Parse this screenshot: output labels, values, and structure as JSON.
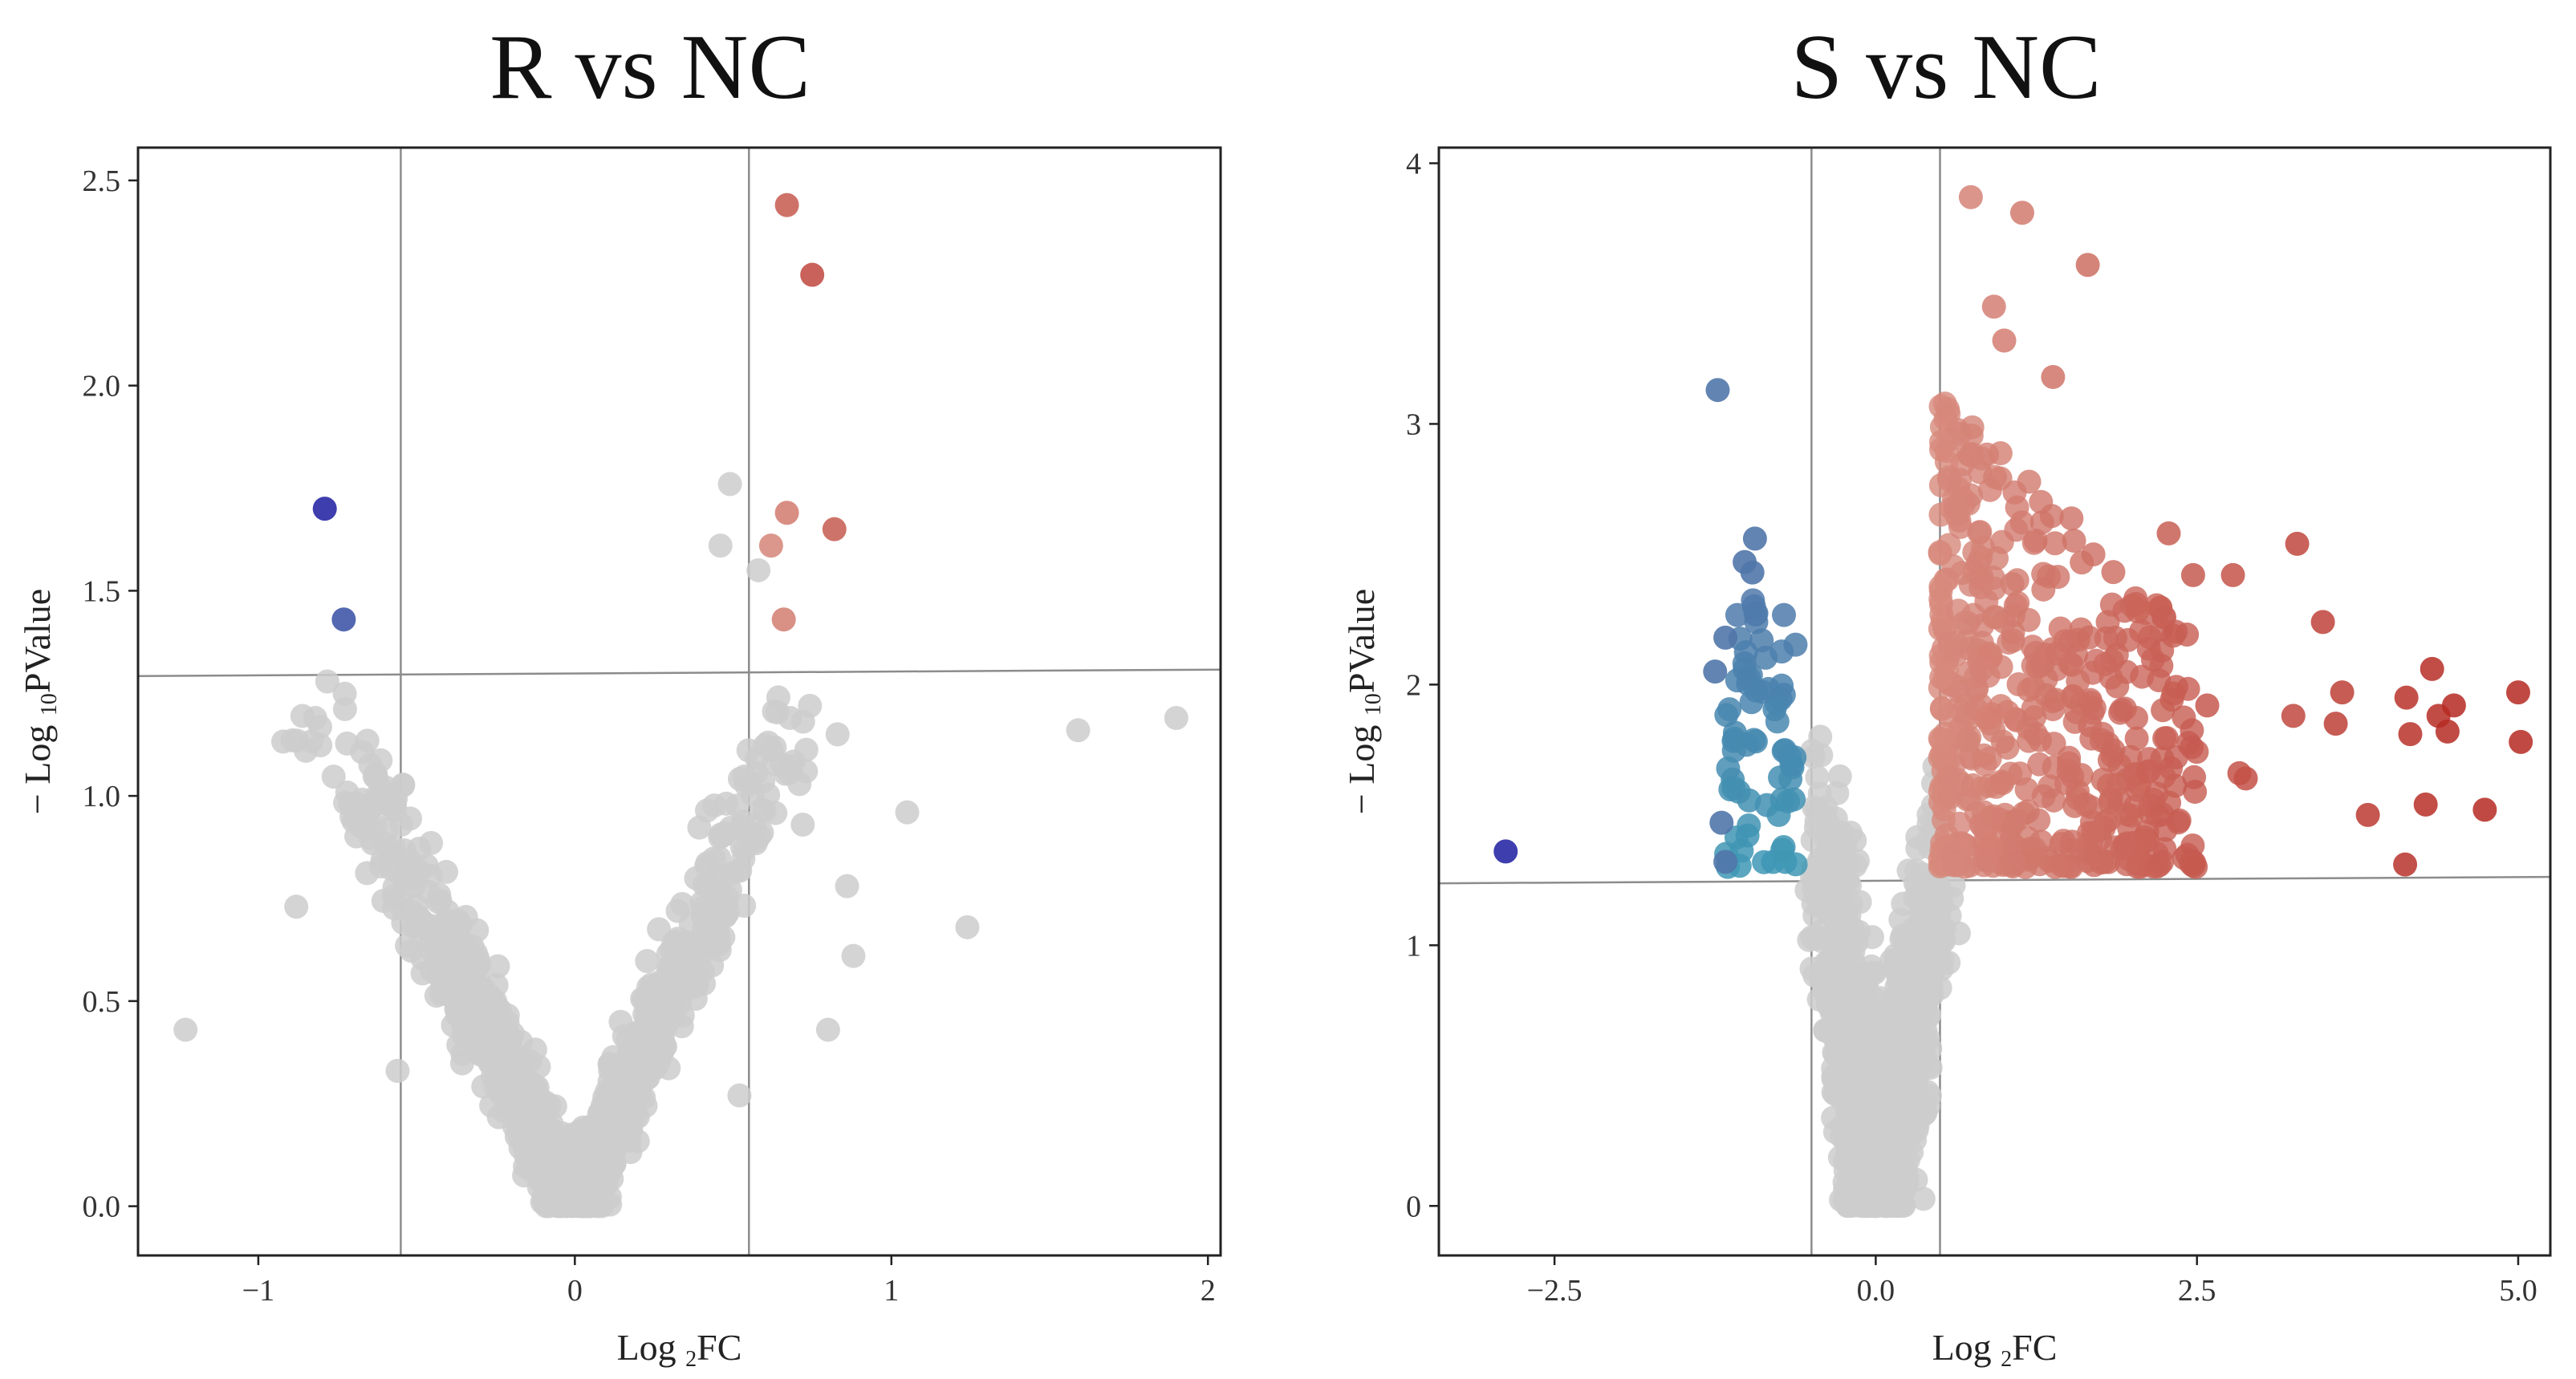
{
  "figure": {
    "colors": {
      "background": "#ffffff",
      "frame": "#222222",
      "guide_line": "#8c8c8c",
      "ns_point": "#cccccc",
      "up_light": "#d7897c",
      "up_dark": "#b52a22",
      "down_teal": "#3e98b5",
      "down_steel": "#5177aa",
      "down_navy": "#2929a6"
    }
  },
  "chart_data": [
    {
      "type": "scatter",
      "title": "R vs NC",
      "xlabel_main": "Log",
      "xlabel_sub": "2",
      "xlabel_tail": "FC",
      "ylabel_main": "− Log",
      "ylabel_sub": "10",
      "ylabel_tail": "PValue",
      "xlim": [
        -1.38,
        2.04
      ],
      "ylim": [
        -0.12,
        2.58
      ],
      "xticks": [
        -1,
        0,
        1,
        2
      ],
      "xtick_labels": [
        "−1",
        "0",
        "1",
        "2"
      ],
      "yticks": [
        0.0,
        0.5,
        1.0,
        1.5,
        2.0,
        2.5
      ],
      "ytick_labels": [
        "0.0",
        "0.5",
        "1.0",
        "1.5",
        "2.0",
        "2.5"
      ],
      "fc_thresholds": [
        -0.55,
        0.55
      ],
      "p_threshold": 1.3,
      "significant_up": [
        {
          "x": 0.67,
          "y": 2.44
        },
        {
          "x": 0.75,
          "y": 2.27
        },
        {
          "x": 0.82,
          "y": 1.65
        },
        {
          "x": 0.67,
          "y": 1.69
        },
        {
          "x": 0.62,
          "y": 1.61
        },
        {
          "x": 0.66,
          "y": 1.43
        }
      ],
      "significant_down": [
        {
          "x": -0.79,
          "y": 1.7
        },
        {
          "x": -0.73,
          "y": 1.43
        }
      ],
      "not_significant_outliers": [
        {
          "x": -1.23,
          "y": 0.43
        },
        {
          "x": -0.88,
          "y": 0.73
        },
        {
          "x": -0.82,
          "y": 1.19
        },
        {
          "x": -0.85,
          "y": 1.11
        },
        {
          "x": 0.49,
          "y": 1.76
        },
        {
          "x": 0.46,
          "y": 1.61
        },
        {
          "x": 0.58,
          "y": 1.55
        },
        {
          "x": 1.05,
          "y": 0.96
        },
        {
          "x": 1.24,
          "y": 0.68
        },
        {
          "x": 1.59,
          "y": 1.16
        },
        {
          "x": 1.9,
          "y": 1.19
        },
        {
          "x": 0.83,
          "y": 1.15
        },
        {
          "x": 0.86,
          "y": 0.78
        },
        {
          "x": 0.88,
          "y": 0.61
        },
        {
          "x": 0.8,
          "y": 0.43
        },
        {
          "x": 0.73,
          "y": 1.06
        },
        {
          "x": 0.68,
          "y": 1.19
        },
        {
          "x": 0.72,
          "y": 0.93
        },
        {
          "x": 0.52,
          "y": 0.27
        },
        {
          "x": -0.56,
          "y": 0.33
        },
        {
          "x": -0.71,
          "y": 0.98
        }
      ],
      "cloud_model": {
        "count": 1200,
        "vertex_x": 0.0,
        "slope_left": 1.55,
        "slope_right": 1.75,
        "max_y": 1.3
      }
    },
    {
      "type": "scatter",
      "title": "S vs NC",
      "xlabel_main": "Log",
      "xlabel_sub": "2",
      "xlabel_tail": "FC",
      "ylabel_main": "− Log",
      "ylabel_sub": "10",
      "ylabel_tail": "PValue",
      "xlim": [
        -3.4,
        5.25
      ],
      "ylim": [
        -0.19,
        4.06
      ],
      "xticks": [
        -2.5,
        0,
        2.5,
        5
      ],
      "xtick_labels": [
        "−2.5",
        "0.0",
        "2.5",
        "5.0"
      ],
      "yticks": [
        0,
        1,
        2,
        3,
        4
      ],
      "ytick_labels": [
        "0",
        "1",
        "2",
        "3",
        "4"
      ],
      "fc_thresholds": [
        -0.5,
        0.5
      ],
      "p_threshold": 1.25,
      "significant_up": [
        {
          "x": 0.74,
          "y": 3.87
        },
        {
          "x": 1.14,
          "y": 3.81
        },
        {
          "x": 1.65,
          "y": 3.61
        },
        {
          "x": 0.92,
          "y": 3.45
        },
        {
          "x": 1.0,
          "y": 3.32
        },
        {
          "x": 1.38,
          "y": 3.18
        },
        {
          "x": 3.28,
          "y": 2.54
        },
        {
          "x": 2.28,
          "y": 2.58
        },
        {
          "x": 2.47,
          "y": 2.42
        },
        {
          "x": 2.78,
          "y": 2.42
        },
        {
          "x": 3.48,
          "y": 2.24
        },
        {
          "x": 3.25,
          "y": 1.88
        },
        {
          "x": 3.58,
          "y": 1.85
        },
        {
          "x": 3.63,
          "y": 1.97
        },
        {
          "x": 4.13,
          "y": 1.95
        },
        {
          "x": 4.33,
          "y": 2.06
        },
        {
          "x": 4.38,
          "y": 1.88
        },
        {
          "x": 4.45,
          "y": 1.82
        },
        {
          "x": 4.5,
          "y": 1.92
        },
        {
          "x": 4.16,
          "y": 1.81
        },
        {
          "x": 5.0,
          "y": 1.97
        },
        {
          "x": 5.02,
          "y": 1.78
        },
        {
          "x": 4.28,
          "y": 1.54
        },
        {
          "x": 3.83,
          "y": 1.5
        },
        {
          "x": 4.74,
          "y": 1.52
        },
        {
          "x": 4.12,
          "y": 1.31
        },
        {
          "x": 2.83,
          "y": 1.66
        },
        {
          "x": 2.88,
          "y": 1.64
        },
        {
          "x": 2.58,
          "y": 1.92
        }
      ],
      "significant_down": [
        {
          "x": -2.88,
          "y": 1.36
        },
        {
          "x": -1.23,
          "y": 3.13
        },
        {
          "x": -0.94,
          "y": 2.56
        },
        {
          "x": -1.02,
          "y": 2.47
        },
        {
          "x": -1.17,
          "y": 2.18
        },
        {
          "x": -1.25,
          "y": 2.05
        },
        {
          "x": -1.2,
          "y": 1.47
        },
        {
          "x": -1.17,
          "y": 1.32
        },
        {
          "x": -0.96,
          "y": 2.43
        }
      ],
      "up_cloud_model": {
        "count": 520,
        "x_range": [
          0.5,
          2.5
        ],
        "y_range": [
          1.3,
          3.1
        ]
      },
      "down_cloud_model": {
        "count": 70,
        "x_range": [
          -1.18,
          -0.62
        ],
        "y_range": [
          1.3,
          2.35
        ]
      },
      "cloud_model": {
        "count": 1600,
        "vertex_x": 0.0,
        "slope_left": 3.6,
        "slope_right": 2.7,
        "max_y": 1.9
      }
    }
  ]
}
